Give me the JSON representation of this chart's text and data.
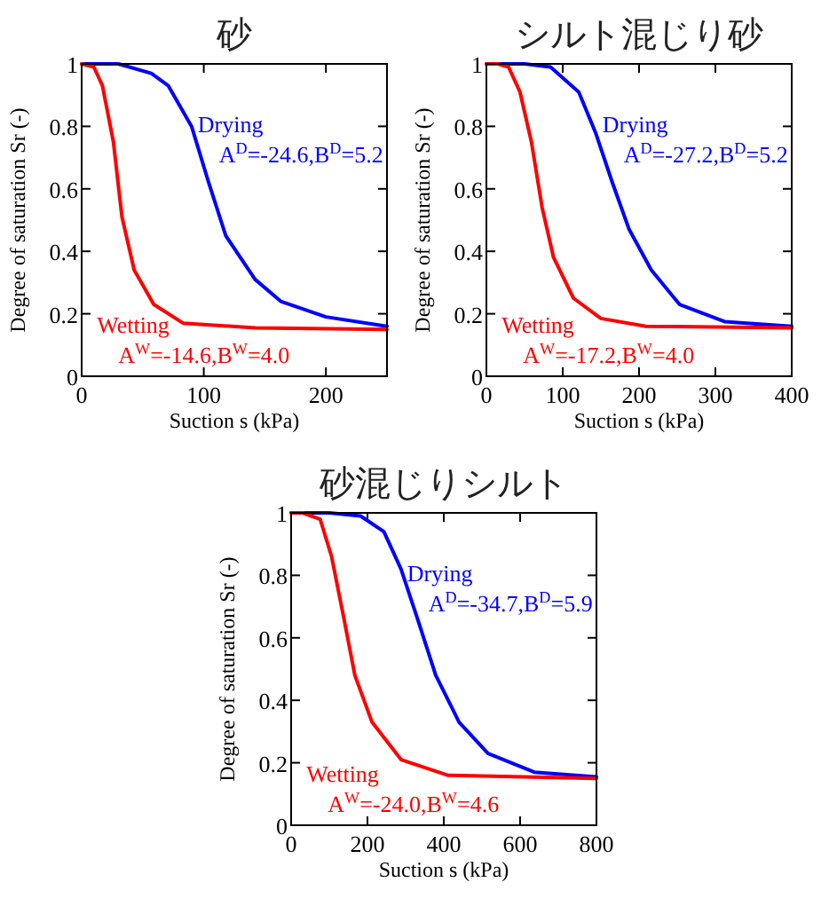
{
  "chart_data": [
    {
      "type": "line",
      "title": "砂",
      "xlabel": "Suction s (kPa)",
      "ylabel": "Degree of saturation Sr (-)",
      "xlim": [
        0,
        250
      ],
      "xticks": [
        0,
        100,
        200
      ],
      "ylim": [
        0,
        1
      ],
      "yticks": [
        0,
        0.2,
        0.4,
        0.6,
        0.8,
        1
      ],
      "series": [
        {
          "name": "Drying",
          "color": "#0000ff",
          "x": [
            0,
            30,
            57,
            71,
            90,
            104,
            118,
            142,
            163,
            200,
            250
          ],
          "values": [
            1,
            1,
            0.97,
            0.93,
            0.8,
            0.62,
            0.45,
            0.31,
            0.24,
            0.19,
            0.16
          ]
        },
        {
          "name": "Wetting",
          "color": "#ff0000",
          "x": [
            0,
            10,
            17,
            26,
            33,
            43,
            59,
            83,
            142,
            250
          ],
          "values": [
            1,
            0.99,
            0.93,
            0.75,
            0.51,
            0.34,
            0.23,
            0.17,
            0.155,
            0.15
          ]
        }
      ],
      "annotations": [
        "A$^{D}$=-24.6,B$^{D}$=5.2",
        "A$^{W}$=-14.6,B$^{W}$=4.0"
      ]
    },
    {
      "type": "line",
      "title": "シルト混じり砂",
      "xlabel": "Suction s (kPa)",
      "ylabel": "Degree of saturation Sr (-)",
      "xlim": [
        0,
        400
      ],
      "xticks": [
        0,
        100,
        200,
        300,
        400
      ],
      "ylim": [
        0,
        1
      ],
      "yticks": [
        0,
        0.2,
        0.4,
        0.6,
        0.8,
        1
      ],
      "series": [
        {
          "name": "Drying",
          "color": "#0000ff",
          "x": [
            0,
            50,
            84,
            121,
            143,
            165,
            187,
            216,
            253,
            312,
            400
          ],
          "values": [
            1,
            1,
            0.99,
            0.91,
            0.78,
            0.62,
            0.47,
            0.34,
            0.23,
            0.175,
            0.16
          ]
        },
        {
          "name": "Wetting",
          "color": "#ff0000",
          "x": [
            0,
            15,
            29,
            44,
            59,
            73,
            88,
            114,
            150,
            209,
            400
          ],
          "values": [
            1,
            1,
            0.99,
            0.91,
            0.75,
            0.54,
            0.38,
            0.25,
            0.185,
            0.16,
            0.155
          ]
        }
      ],
      "annotations": [
        "A$^{D}$=-27.2,B$^{D}$=5.2",
        "A$^{W}$=-17.2,B$^{W}$=4.0"
      ]
    },
    {
      "type": "line",
      "title": "砂混じりシルト",
      "xlabel": "Suction s (kPa)",
      "ylabel": "Degree of saturation Sr (-)",
      "xlim": [
        0,
        800
      ],
      "xticks": [
        0,
        200,
        400,
        600,
        800
      ],
      "ylim": [
        0,
        1
      ],
      "yticks": [
        0,
        0.2,
        0.4,
        0.6,
        0.8,
        1
      ],
      "series": [
        {
          "name": "Drying",
          "color": "#0000ff",
          "x": [
            0,
            100,
            182,
            243,
            288,
            334,
            379,
            440,
            516,
            637,
            800
          ],
          "values": [
            1,
            1,
            0.99,
            0.94,
            0.82,
            0.65,
            0.48,
            0.33,
            0.23,
            0.17,
            0.155
          ]
        },
        {
          "name": "Wetting",
          "color": "#ff0000",
          "x": [
            0,
            30,
            76,
            106,
            137,
            167,
            212,
            288,
            410,
            800
          ],
          "values": [
            1,
            1,
            0.98,
            0.86,
            0.67,
            0.48,
            0.33,
            0.21,
            0.16,
            0.15
          ]
        }
      ],
      "annotations": [
        "A$^{D}$=-34.7,B$^{D}$=5.9",
        "A$^{W}$=-24.0,B$^{W}$=4.6"
      ]
    }
  ]
}
